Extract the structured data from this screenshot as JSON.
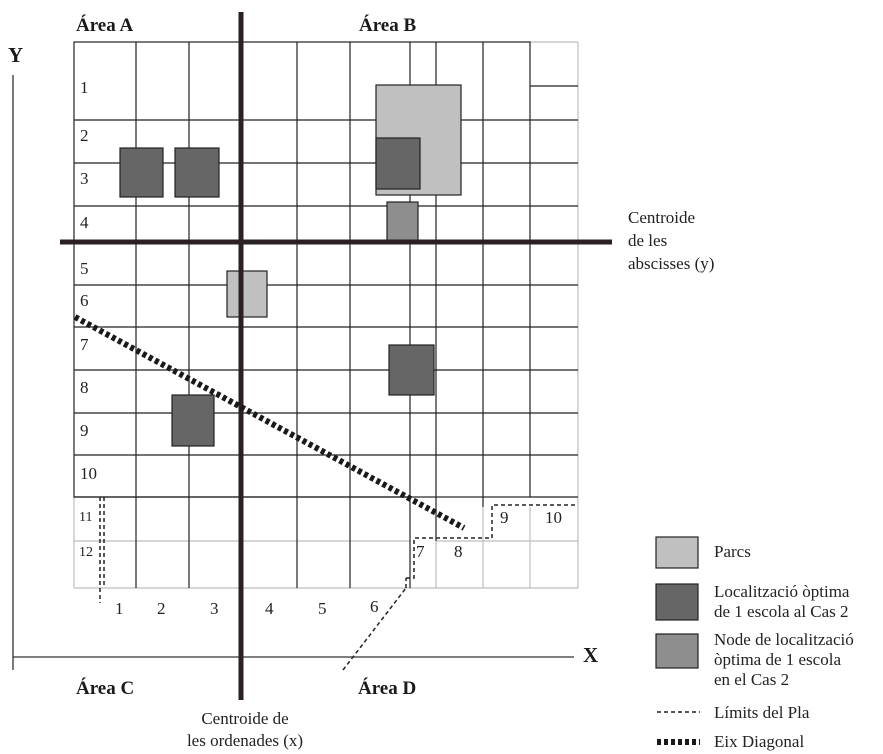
{
  "area_labels": {
    "a": "Área A",
    "b": "Área B",
    "c": "Área C",
    "d": "Área D"
  },
  "axes": {
    "y_label": "Y",
    "x_label": "X"
  },
  "centroids": {
    "abscisses": [
      "Centroide",
      "de les",
      "abscisses (y)"
    ],
    "ordenades": [
      "Centroide de",
      "les ordenades (x)"
    ]
  },
  "row_numbers": [
    "1",
    "2",
    "3",
    "4",
    "5",
    "6",
    "7",
    "8",
    "9",
    "10",
    "11",
    "12"
  ],
  "column_numbers": [
    "1",
    "2",
    "3",
    "4",
    "5",
    "6"
  ],
  "boundary_numbers": [
    "7",
    "8",
    "9",
    "10"
  ],
  "legend": {
    "parcs": "Parcs",
    "localitzacio": [
      "Localització òptima",
      "de 1 escola al Cas 2"
    ],
    "node": [
      "Node de localització",
      "òptima de 1 escola",
      "en el Cas 2"
    ],
    "limits": "Límits del Pla",
    "eix": "Eix Diagonal"
  },
  "colors": {
    "park": "#c0c0c0",
    "school": "#666666",
    "node": "#8e8e8e",
    "grid": "#222222",
    "grid_light": "#bdbdbd",
    "axis": "#2b2123"
  }
}
